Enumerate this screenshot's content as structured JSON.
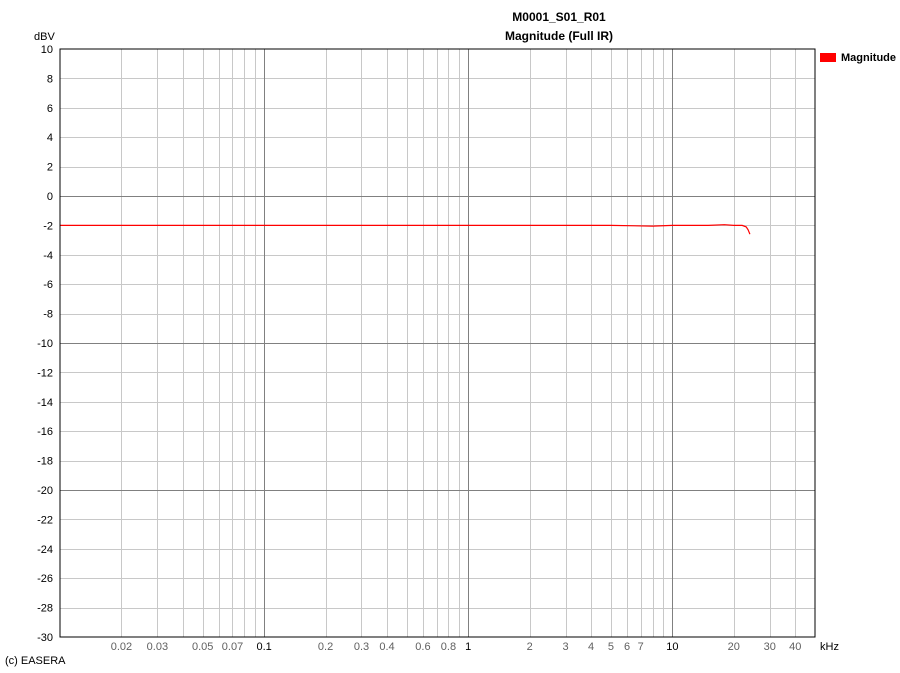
{
  "chart_data": {
    "type": "line",
    "title": "M0001_S01_R01",
    "subtitle": "Magnitude (Full IR)",
    "ylabel": "dBV",
    "xlabel": "kHz",
    "x_scale": "log",
    "xlim": [
      0.01,
      50
    ],
    "ylim": [
      -30,
      10
    ],
    "y_ticks": [
      10,
      8,
      6,
      4,
      2,
      0,
      -2,
      -4,
      -6,
      -8,
      -10,
      -12,
      -14,
      -16,
      -18,
      -20,
      -22,
      -24,
      -26,
      -28,
      -30
    ],
    "y_tick_labels": [
      "10",
      "8",
      "6",
      "4",
      "2",
      "0",
      "-2",
      "-4",
      "-6",
      "-8",
      "-10",
      "-12",
      "-14",
      "-16",
      "-18",
      "-20",
      "-22",
      "-24",
      "-26",
      "-28",
      "-30"
    ],
    "x_ticks": [
      0.02,
      0.03,
      0.05,
      0.07,
      0.1,
      0.2,
      0.3,
      0.4,
      0.6,
      0.8,
      1,
      2,
      3,
      4,
      5,
      6,
      7,
      10,
      20,
      30,
      40
    ],
    "x_tick_labels": [
      "0.02",
      "0.03",
      "0.05",
      "0.07",
      "0.1",
      "0.2",
      "0.3",
      "0.4",
      "0.6",
      "0.8",
      "1",
      "2",
      "3",
      "4",
      "5",
      "6",
      "7",
      "10",
      "20",
      "30",
      "40"
    ],
    "grid": true,
    "legend_position": "right",
    "series": [
      {
        "name": "Magnitude",
        "color": "#ff0000",
        "x": [
          0.01,
          0.1,
          1,
          5,
          8,
          10,
          15,
          18,
          20,
          22,
          23,
          23.5,
          24
        ],
        "y": [
          -2.0,
          -2.0,
          -2.0,
          -2.0,
          -2.05,
          -2.0,
          -2.0,
          -1.95,
          -2.0,
          -2.0,
          -2.1,
          -2.3,
          -2.6
        ]
      }
    ],
    "footer": "(c) EASERA"
  }
}
